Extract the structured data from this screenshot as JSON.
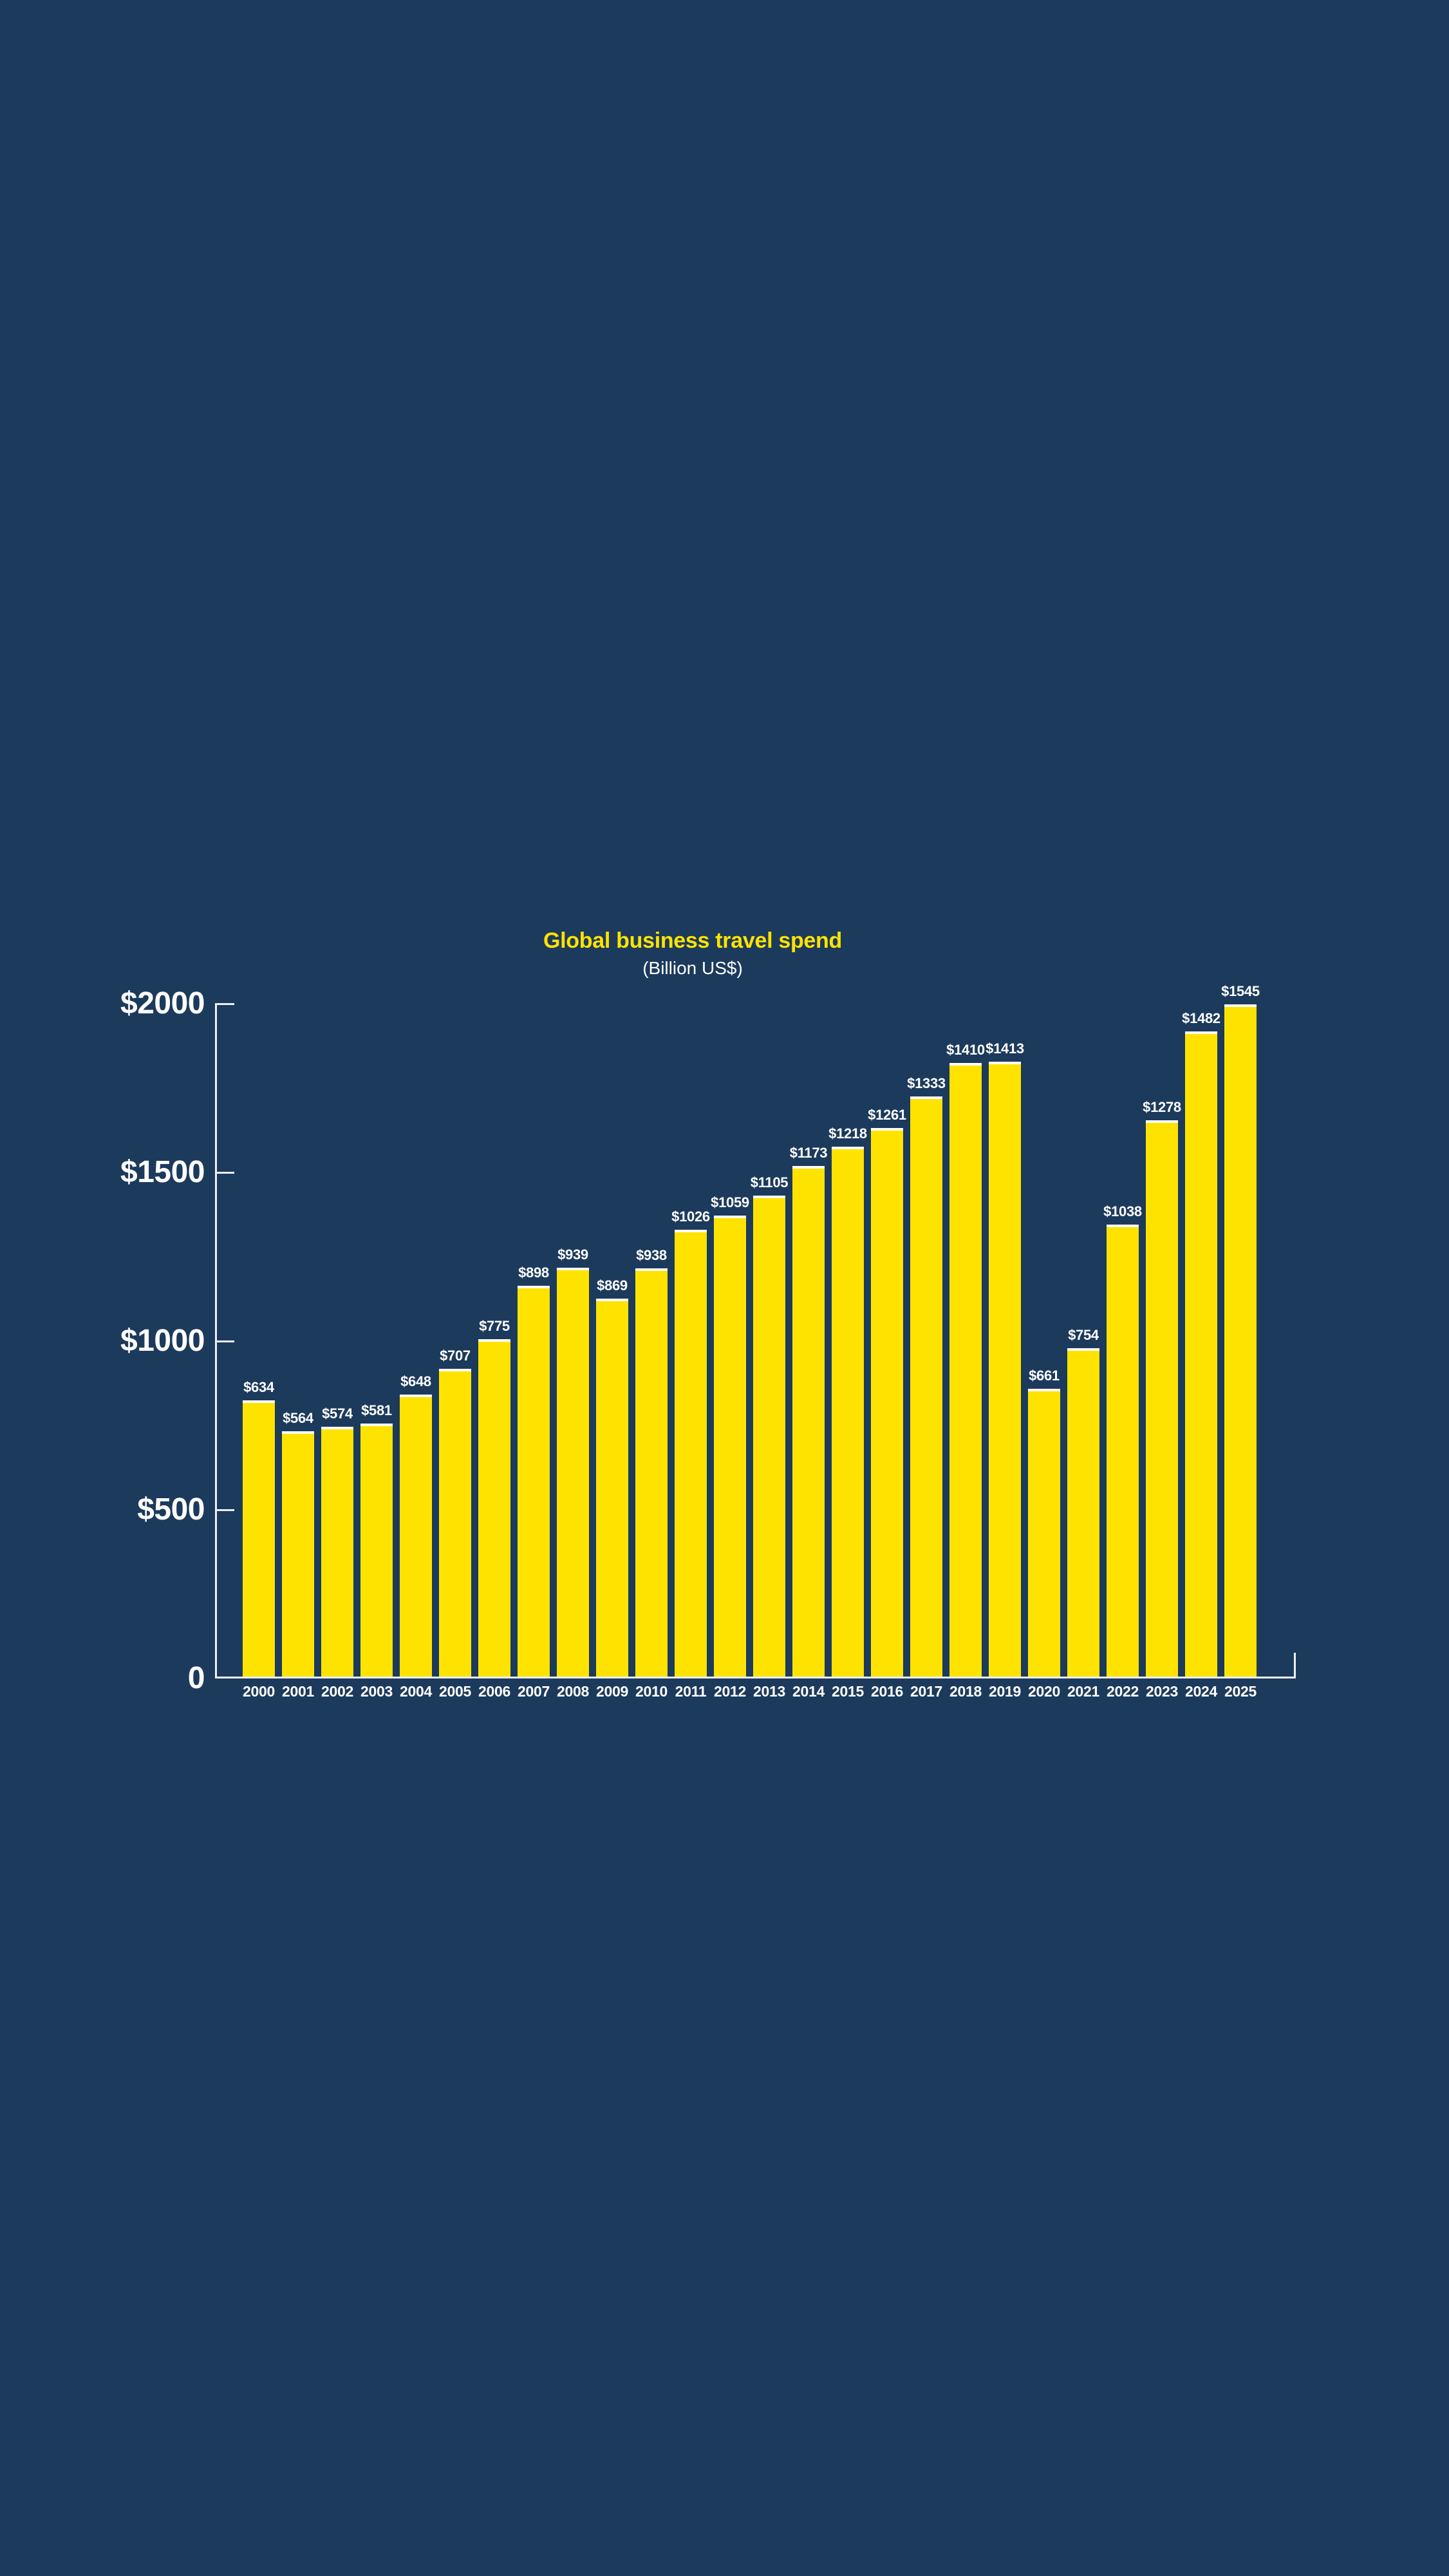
{
  "chart_data": {
    "type": "bar",
    "title": "Global business travel spend",
    "subtitle": "(Billion US$)",
    "categories": [
      "2000",
      "2001",
      "2002",
      "2003",
      "2004",
      "2005",
      "2006",
      "2007",
      "2008",
      "2009",
      "2010",
      "2011",
      "2012",
      "2013",
      "2014",
      "2015",
      "2016",
      "2017",
      "2018",
      "2019",
      "2020",
      "2021",
      "2022",
      "2023",
      "2024",
      "2025"
    ],
    "values": [
      634,
      564,
      574,
      581,
      648,
      707,
      775,
      898,
      939,
      869,
      938,
      1026,
      1059,
      1105,
      1173,
      1218,
      1261,
      1333,
      1410,
      1413,
      661,
      754,
      1038,
      1278,
      1482,
      1545
    ],
    "bar_labels": [
      "$634",
      "$564",
      "$574",
      "$581",
      "$648",
      "$707",
      "$775",
      "$898",
      "$939",
      "$869",
      "$938",
      "$1026",
      "$1059",
      "$1105",
      "$1173",
      "$1218",
      "$1261",
      "$1333",
      "$1410",
      "$1413",
      "$661",
      "$754",
      "$1038",
      "$1278",
      "$1482",
      "$1545"
    ],
    "y_ticks": [
      {
        "label": "$2000",
        "value": 2000
      },
      {
        "label": "$1500",
        "value": 1500
      },
      {
        "label": "$1000",
        "value": 1000
      },
      {
        "label": "$500",
        "value": 500
      },
      {
        "label": "0",
        "value": 0
      }
    ],
    "ylim": [
      0,
      2000
    ],
    "xlabel": "",
    "ylabel": "",
    "legend": null,
    "grid": false,
    "colors": {
      "background": "#1C3A5C",
      "bar_fill": "#FFE300",
      "bar_top_edge": "#FFFFFF",
      "axis_line": "#ECF1F7",
      "title_text": "#FFE300",
      "subtitle_text": "#FFFFFF",
      "label_text": "#FFFFFF"
    }
  }
}
